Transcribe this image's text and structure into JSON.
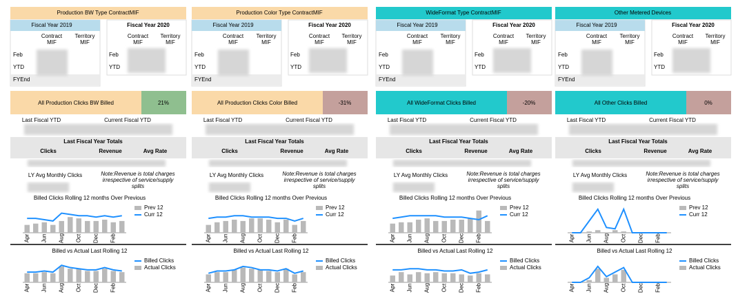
{
  "panels": [
    {
      "header": "Production BW Type ContractMIF",
      "header_color": "#fad9a8",
      "fy_left": "Fiscal Year 2019",
      "fy_right": "Fiscal Year 2020",
      "col_left": [
        "Contract MIF",
        "Territory MIF"
      ],
      "col_right": [
        "Contract MIF",
        "Territory MIF"
      ],
      "rows_left": [
        "Feb",
        "YTD",
        "FYEnd"
      ],
      "rows_right": [
        "Feb",
        "YTD"
      ],
      "kpi_title": "All Production Clicks BW Billed",
      "kpi_value": "21%",
      "kpi_color": "#8fbf8f",
      "ytd_labels": [
        "Last Fiscal YTD",
        "Current Fiscal YTD"
      ],
      "totals_title": "Last Fiscal Year Totals",
      "totals_cols": [
        "Clicks",
        "Revenue",
        "Avg Rate"
      ],
      "ly_avg": "LY Avg Monthly Clicks",
      "note": [
        "Note:Revenue is total charges",
        "irrespective of service/supply",
        "splits"
      ],
      "note_color": "#000000",
      "chart1": {
        "type": "bar-line",
        "title": "Billed Clicks Rolling 12 months Over Previous",
        "categories": [
          "Apr",
          null,
          "Jun",
          null,
          "Aug",
          null,
          "Oct",
          null,
          "Dec",
          null,
          "Feb",
          null
        ],
        "ylim": [
          0,
          100
        ],
        "series": [
          {
            "name": "Prev 12",
            "color": "#b9b9b9",
            "values": [
              30,
              35,
              40,
              30,
              45,
              60,
              55,
              45,
              45,
              50,
              40,
              45
            ]
          },
          {
            "name": "Curr 12",
            "color": "#1e90ff",
            "values": [
              55,
              55,
              50,
              45,
              75,
              70,
              65,
              65,
              60,
              65,
              60,
              65
            ]
          }
        ]
      },
      "chart2": {
        "type": "bar-line",
        "title": "Billed vs Actual Last Rolling 12",
        "categories": [
          "Apr",
          null,
          "Jun",
          null,
          "Aug",
          null,
          "Oct",
          null,
          "Dec",
          null,
          "Feb",
          null
        ],
        "ylim": [
          0,
          100
        ],
        "series": [
          {
            "name": "Actual Clicks",
            "color": "#b9b9b9",
            "values": [
              40,
              40,
              45,
              40,
              70,
              60,
              60,
              50,
              50,
              60,
              50,
              45
            ]
          },
          {
            "name": "Billed Clicks",
            "color": "#1e90ff",
            "values": [
              45,
              45,
              50,
              45,
              75,
              65,
              60,
              55,
              55,
              65,
              55,
              50
            ]
          }
        ]
      }
    },
    {
      "header": "Production Color Type ContractMIF",
      "header_color": "#fad9a8",
      "fy_left": "Fiscal Year 2019",
      "fy_right": "Fiscal Year 2020",
      "col_left": [
        "Contract MIF",
        "Territory MIF"
      ],
      "col_right": [
        "Contract MIF",
        "Territory MIF"
      ],
      "rows_left": [
        "Feb",
        "YTD",
        "FYEnd"
      ],
      "rows_right": [
        "Feb",
        "YTD"
      ],
      "kpi_title": "All Production Clicks Color Billed",
      "kpi_value": "-31%",
      "kpi_color": "#c4a09c",
      "ytd_labels": [
        "Last Fiscal YTD",
        "Current Fiscal YTD"
      ],
      "totals_title": "Last Fiscal Year Totals",
      "totals_cols": [
        "Clicks",
        "Revenue",
        "Avg Rate"
      ],
      "ly_avg": "LY Avg Monthly Clicks",
      "note": [
        "Note:Revenue is total charges",
        "irrespective of service/supply",
        "splits"
      ],
      "note_color": "#000000",
      "chart1": {
        "type": "bar-line",
        "title": "Billed Clicks Rolling 12 months Over Previous",
        "categories": [
          "Apr",
          null,
          "Jun",
          null,
          "Aug",
          null,
          "Oct",
          null,
          "Dec",
          null,
          "Feb",
          null
        ],
        "ylim": [
          0,
          100
        ],
        "series": [
          {
            "name": "Prev 12",
            "color": "#b9b9b9",
            "values": [
              30,
              40,
              45,
              50,
              45,
              55,
              55,
              50,
              40,
              50,
              30,
              45
            ]
          },
          {
            "name": "Curr 12",
            "color": "#1e90ff",
            "values": [
              55,
              60,
              60,
              65,
              65,
              60,
              60,
              60,
              55,
              55,
              45,
              55
            ]
          }
        ]
      },
      "chart2": {
        "type": "bar-line",
        "title": "Billed vs Actual Last Rolling 12",
        "categories": [
          "Apr",
          null,
          "Jun",
          null,
          "Aug",
          null,
          "Oct",
          null,
          "Dec",
          null,
          "Feb",
          null
        ],
        "ylim": [
          0,
          100
        ],
        "series": [
          {
            "name": "Actual Clicks",
            "color": "#b9b9b9",
            "values": [
              35,
              45,
              45,
              55,
              65,
              60,
              55,
              50,
              45,
              60,
              35,
              45
            ]
          },
          {
            "name": "Billed Clicks",
            "color": "#1e90ff",
            "values": [
              40,
              50,
              50,
              55,
              70,
              65,
              55,
              55,
              50,
              60,
              40,
              50
            ]
          }
        ]
      }
    },
    {
      "header": "WideFormat Type ContractMIF",
      "header_color": "#22c9cc",
      "fy_left": "Fiscal Year 2019",
      "fy_right": "Fiscal Year 2020",
      "col_left": [
        "Contract MIF",
        "Territory MIF"
      ],
      "col_right": [
        "Contract MIF",
        "Territory MIF"
      ],
      "rows_left": [
        "Feb",
        "YTD",
        "FYEnd"
      ],
      "rows_right": [
        "Feb",
        "YTD"
      ],
      "kpi_title": "All WideFormat Clicks Billed",
      "kpi_value": "-20%",
      "kpi_color": "#c4a09c",
      "ytd_labels": [
        "Last Fiscal YTD",
        "Current Fiscal YTD"
      ],
      "totals_title": "Last Fiscal Year Totals",
      "totals_cols": [
        "Clicks",
        "Revenue",
        "Avg Rate"
      ],
      "ly_avg": "LY Avg Monthly Clicks",
      "note": [
        "Note:Revenue is total charges",
        "irrespective of service/supply",
        "splits"
      ],
      "note_color": "#d40000",
      "chart1": {
        "type": "bar-line",
        "title": "Billed Clicks Rolling 12 months Over Previous",
        "categories": [
          "Apr",
          null,
          "Jun",
          null,
          "Aug",
          null,
          "Oct",
          null,
          "Dec",
          null,
          "Feb",
          null
        ],
        "ylim": [
          0,
          100
        ],
        "series": [
          {
            "name": "Prev 12",
            "color": "#b9b9b9",
            "values": [
              35,
              40,
              40,
              50,
              55,
              45,
              45,
              50,
              50,
              55,
              85,
              45
            ]
          },
          {
            "name": "Curr 12",
            "color": "#1e90ff",
            "values": [
              55,
              60,
              65,
              65,
              65,
              65,
              60,
              60,
              60,
              55,
              50,
              65
            ]
          }
        ]
      },
      "chart2": {
        "type": "bar-line",
        "title": "Billed vs Actual Last Rolling 12",
        "categories": [
          "Apr",
          null,
          "Jun",
          null,
          "Aug",
          null,
          "Oct",
          null,
          "Dec",
          null,
          "Feb",
          null
        ],
        "ylim": [
          0,
          100
        ],
        "series": [
          {
            "name": "Actual Clicks",
            "color": "#b9b9b9",
            "values": [
              30,
              45,
              35,
              45,
              40,
              45,
              40,
              40,
              35,
              30,
              40,
              35
            ]
          },
          {
            "name": "Billed Clicks",
            "color": "#1e90ff",
            "values": [
              55,
              55,
              60,
              60,
              55,
              55,
              50,
              50,
              55,
              40,
              45,
              55
            ]
          }
        ]
      }
    },
    {
      "header": "Other Metered Devices",
      "header_color": "#22c9cc",
      "fy_left": "Fiscal Year 2019",
      "fy_right": "Fiscal Year 2020",
      "col_left": [
        "Contract MIF",
        "Territory MIF"
      ],
      "col_right": [
        "Contract MIF",
        "Territory MIF"
      ],
      "rows_left": [
        "Feb",
        "YTD",
        "FYEnd"
      ],
      "rows_right": [
        "Feb",
        "YTD"
      ],
      "kpi_title": "All Other Clicks Billed",
      "kpi_value": "0%",
      "kpi_color": "#c4a09c",
      "ytd_labels": [
        "Last Fiscal YTD",
        "Current Fiscal YTD"
      ],
      "totals_title": "Last Fiscal Year Totals",
      "totals_cols": [
        "Clicks",
        "Revenue",
        "Avg Rate"
      ],
      "ly_avg": "LY Avg Monthly Clicks",
      "note": [
        "Note:Revenue is total charges",
        "irrespective of service/supply",
        "splits"
      ],
      "note_color": "#d40000",
      "chart1": {
        "type": "bar-line",
        "title": "Billed Clicks Rolling 12 months Over Previous",
        "categories": [
          "Apr",
          null,
          "Jun",
          null,
          "Aug",
          null,
          "Oct",
          null,
          "Dec",
          null,
          "Feb",
          null
        ],
        "ylim": [
          0,
          100
        ],
        "series": [
          {
            "name": "Prev 12",
            "color": "#b9b9b9",
            "values": [
              0,
              0,
              5,
              10,
              0,
              10,
              5,
              0,
              0,
              0,
              0,
              0
            ]
          },
          {
            "name": "Curr 12",
            "color": "#1e90ff",
            "values": [
              0,
              0,
              45,
              90,
              20,
              15,
              90,
              0,
              0,
              0,
              0,
              0
            ]
          }
        ]
      },
      "chart2": {
        "type": "bar-line",
        "title": "Billed vs Actual Last Rolling 12",
        "categories": [
          "Apr",
          null,
          "Jun",
          null,
          "Aug",
          null,
          "Oct",
          null,
          "Dec",
          null,
          "Feb",
          null
        ],
        "ylim": [
          0,
          100
        ],
        "series": [
          {
            "name": "Actual Clicks",
            "color": "#b9b9b9",
            "values": [
              0,
              0,
              10,
              60,
              20,
              35,
              55,
              0,
              0,
              0,
              0,
              0
            ]
          },
          {
            "name": "Billed Clicks",
            "color": "#1e90ff",
            "values": [
              0,
              0,
              20,
              70,
              25,
              45,
              65,
              0,
              0,
              0,
              0,
              0
            ]
          }
        ]
      }
    }
  ]
}
